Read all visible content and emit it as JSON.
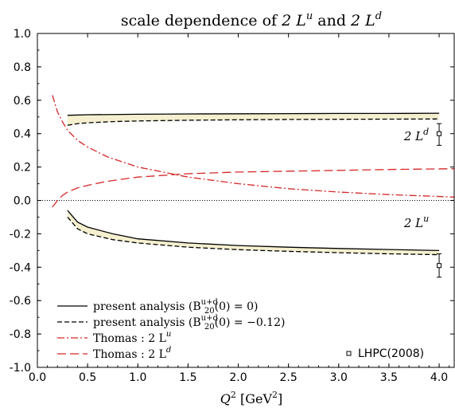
{
  "chart_data": {
    "type": "line",
    "title": "scale dependence of 2 Lᵘ and 2 Lᵈ",
    "xlabel": "Q² [GeV²]",
    "ylabel": "",
    "xlim": [
      0.0,
      4.15
    ],
    "ylim": [
      -1.0,
      1.0
    ],
    "x_ticks": [
      "0.0",
      "0.5",
      "1.0",
      "1.5",
      "2.0",
      "2.5",
      "3.0",
      "3.5",
      "4.0"
    ],
    "y_ticks": [
      "1.0",
      "0.8",
      "0.6",
      "0.4",
      "0.2",
      "0.0",
      "-0.2",
      "-0.4",
      "-0.6",
      "-0.8",
      "-1.0"
    ],
    "grid": false,
    "legend_position": "bottom-left",
    "series": [
      {
        "name": "present analysis (B_20^{u+d}(0) = 0)",
        "legend_label": "present analysis (B",
        "legend_sub": "20",
        "legend_sup": "u+d",
        "legend_tail": "(0) = 0)",
        "style": "solid",
        "color": "#000000",
        "curves": [
          {
            "label": "2 L^d",
            "x": [
              0.3,
              0.5,
              1.0,
              1.5,
              2.0,
              2.5,
              3.0,
              3.5,
              4.0
            ],
            "y": [
              0.51,
              0.513,
              0.516,
              0.518,
              0.519,
              0.52,
              0.521,
              0.521,
              0.522
            ]
          },
          {
            "label": "2 L^u",
            "x": [
              0.3,
              0.4,
              0.5,
              0.75,
              1.0,
              1.5,
              2.0,
              2.5,
              3.0,
              3.5,
              4.0
            ],
            "y": [
              -0.06,
              -0.13,
              -0.16,
              -0.2,
              -0.23,
              -0.255,
              -0.27,
              -0.28,
              -0.288,
              -0.294,
              -0.3
            ]
          }
        ]
      },
      {
        "name": "present analysis (B_20^{u+d}(0) = -0.12)",
        "legend_label": "present analysis (B",
        "legend_sub": "20",
        "legend_sup": "u+d",
        "legend_tail": "(0) = −0.12)",
        "style": "dashed",
        "color": "#000000",
        "curves": [
          {
            "label": "2 L^d",
            "x": [
              0.3,
              0.4,
              0.5,
              0.75,
              1.0,
              1.5,
              2.0,
              2.5,
              3.0,
              3.5,
              4.0
            ],
            "y": [
              0.45,
              0.46,
              0.465,
              0.472,
              0.476,
              0.48,
              0.483,
              0.485,
              0.486,
              0.487,
              0.488
            ]
          },
          {
            "label": "2 L^u",
            "x": [
              0.3,
              0.4,
              0.5,
              0.75,
              1.0,
              1.5,
              2.0,
              2.5,
              3.0,
              3.5,
              4.0
            ],
            "y": [
              -0.1,
              -0.17,
              -0.2,
              -0.235,
              -0.255,
              -0.28,
              -0.295,
              -0.305,
              -0.313,
              -0.32,
              -0.325
            ]
          }
        ]
      },
      {
        "name": "Thomas : 2 L^u",
        "legend_label": "Thomas : 2 L",
        "legend_sup": "u",
        "style": "dashdot",
        "color": "#d62728",
        "curves": [
          {
            "label": "2 L^u",
            "x": [
              0.15,
              0.2,
              0.25,
              0.3,
              0.4,
              0.5,
              0.7,
              1.0,
              1.5,
              2.0,
              2.5,
              3.0,
              3.5,
              4.15
            ],
            "y": [
              0.63,
              0.53,
              0.47,
              0.42,
              0.36,
              0.32,
              0.26,
              0.2,
              0.14,
              0.1,
              0.07,
              0.05,
              0.035,
              0.02
            ]
          }
        ]
      },
      {
        "name": "Thomas : 2 L^d",
        "legend_label": "Thomas : 2 L",
        "legend_sup": "d",
        "style": "longdash",
        "color": "#d62728",
        "curves": [
          {
            "label": "2 L^d",
            "x": [
              0.15,
              0.2,
              0.25,
              0.3,
              0.4,
              0.5,
              0.7,
              1.0,
              1.5,
              2.0,
              2.5,
              3.0,
              3.5,
              4.15
            ],
            "y": [
              -0.04,
              0.0,
              0.03,
              0.05,
              0.075,
              0.09,
              0.115,
              0.14,
              0.16,
              0.17,
              0.175,
              0.18,
              0.185,
              0.19
            ]
          }
        ]
      }
    ],
    "bands": [
      {
        "between": [
          "solid 2 L^d",
          "dashed 2 L^d"
        ],
        "color": "#f4f0cf"
      },
      {
        "between": [
          "solid 2 L^u",
          "dashed 2 L^u"
        ],
        "color": "#f4f0cf"
      }
    ],
    "lattice_points": {
      "name": "LHPC(2008)",
      "points": [
        {
          "x": 4.0,
          "y": 0.4,
          "err_low": 0.33,
          "err_high": 0.46
        },
        {
          "x": 4.0,
          "y": -0.39,
          "err_low": -0.46,
          "err_high": -0.32
        }
      ]
    },
    "annotations": [
      {
        "text_base": "2 L",
        "text_sup": "d",
        "x": 3.65,
        "y": 0.36
      },
      {
        "text_base": "2 L",
        "text_sup": "u",
        "x": 3.65,
        "y": -0.16
      }
    ],
    "zero_line": {
      "y": 0.0,
      "style": "dotted"
    }
  },
  "labels": {
    "title_prefix": "scale dependence of ",
    "title_part1": "2 L",
    "title_sup1": "u",
    "title_and": " and ",
    "title_part2": "2 L",
    "title_sup2": "d",
    "xlabel_q": "Q",
    "xlabel_sup": "2",
    "xlabel_unit_open": " [GeV",
    "xlabel_unit_sup": "2",
    "xlabel_unit_close": "]",
    "lhpc": "LHPC(2008)"
  },
  "colors": {
    "band_fill": "#f4f0cf",
    "thomas_red": "#d62728",
    "axis": "#000000"
  }
}
